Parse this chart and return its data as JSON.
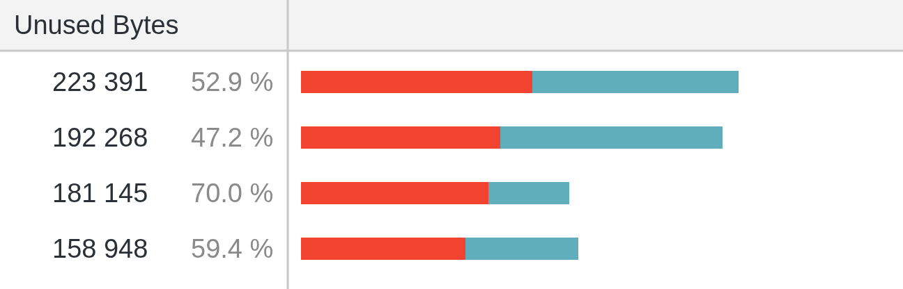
{
  "chart_data": {
    "type": "bar",
    "title": "Unused Bytes",
    "orientation": "horizontal",
    "stacked": true,
    "tick_labels": false,
    "categories": [
      null,
      null,
      null,
      null
    ],
    "series": [
      {
        "color": "#f1432f",
        "values": [
          223391,
          192268,
          181145,
          158948
        ],
        "value_labels": [
          "223 391",
          "192 268",
          "181 145",
          "158 948"
        ]
      },
      {
        "color": "#60adbb",
        "values": [
          199000,
          215000,
          77600,
          109000
        ]
      }
    ],
    "annotations": [
      "52.9 %",
      "47.2 %",
      "70.0 %",
      "59.4 %"
    ]
  }
}
